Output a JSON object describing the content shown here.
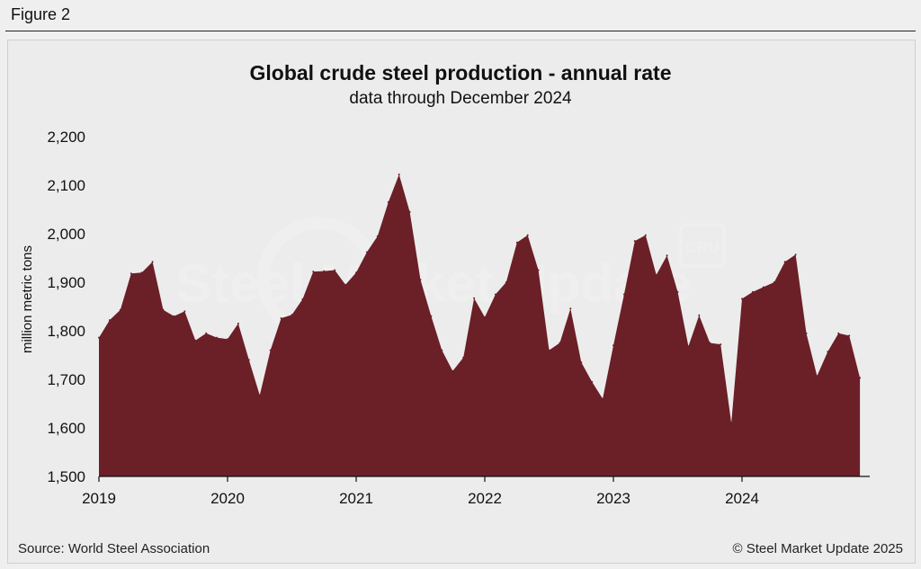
{
  "figure_label": "Figure 2",
  "watermark": {
    "logo_text": "Steel Market Update",
    "badge_text": "CRU"
  },
  "footer": {
    "source": "Source: World Steel Association",
    "copyright": "© Steel Market Update 2025"
  },
  "colors": {
    "area_fill": "#6b1f27",
    "background": "#ececec"
  },
  "chart_data": {
    "type": "area",
    "title": "Global crude steel production - annual rate",
    "subtitle": "data through December 2024",
    "xlabel": "",
    "ylabel": "million metric tons",
    "ylim": [
      1500,
      2200
    ],
    "yticks": [
      1500,
      1600,
      1700,
      1800,
      1900,
      2000,
      2100,
      2200
    ],
    "ytick_labels": [
      "1,500",
      "1,600",
      "1,700",
      "1,800",
      "1,900",
      "2,000",
      "2,100",
      "2,200"
    ],
    "xticks": [
      "2019",
      "2020",
      "2021",
      "2022",
      "2023",
      "2024"
    ],
    "grid": false,
    "legend": "none",
    "x": [
      "2019-01",
      "2019-02",
      "2019-03",
      "2019-04",
      "2019-05",
      "2019-06",
      "2019-07",
      "2019-08",
      "2019-09",
      "2019-10",
      "2019-11",
      "2019-12",
      "2020-01",
      "2020-02",
      "2020-03",
      "2020-04",
      "2020-05",
      "2020-06",
      "2020-07",
      "2020-08",
      "2020-09",
      "2020-10",
      "2020-11",
      "2020-12",
      "2021-01",
      "2021-02",
      "2021-03",
      "2021-04",
      "2021-05",
      "2021-06",
      "2021-07",
      "2021-08",
      "2021-09",
      "2021-10",
      "2021-11",
      "2021-12",
      "2022-01",
      "2022-02",
      "2022-03",
      "2022-04",
      "2022-05",
      "2022-06",
      "2022-07",
      "2022-08",
      "2022-09",
      "2022-10",
      "2022-11",
      "2022-12",
      "2023-01",
      "2023-02",
      "2023-03",
      "2023-04",
      "2023-05",
      "2023-06",
      "2023-07",
      "2023-08",
      "2023-09",
      "2023-10",
      "2023-11",
      "2023-12",
      "2024-01",
      "2024-02",
      "2024-03",
      "2024-04",
      "2024-05",
      "2024-06",
      "2024-07",
      "2024-08",
      "2024-09",
      "2024-10",
      "2024-11",
      "2024-12"
    ],
    "values": [
      1786,
      1822,
      1843,
      1918,
      1920,
      1942,
      1843,
      1830,
      1840,
      1780,
      1795,
      1786,
      1783,
      1815,
      1740,
      1667,
      1760,
      1826,
      1833,
      1865,
      1922,
      1923,
      1925,
      1895,
      1920,
      1962,
      1995,
      2065,
      2122,
      2045,
      1905,
      1830,
      1760,
      1717,
      1745,
      1867,
      1828,
      1875,
      1900,
      1982,
      1997,
      1925,
      1760,
      1775,
      1846,
      1735,
      1695,
      1660,
      1770,
      1875,
      1985,
      1997,
      1915,
      1955,
      1880,
      1768,
      1832,
      1775,
      1772,
      1610,
      1866,
      1880,
      1890,
      1900,
      1942,
      1957,
      1795,
      1707,
      1757,
      1795,
      1790,
      1703
    ]
  }
}
